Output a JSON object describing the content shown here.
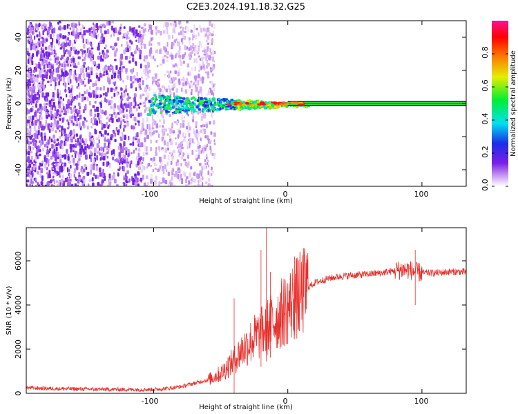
{
  "title": "C2E3.2024.191.18.32.G25",
  "chart_data": [
    {
      "type": "heatmap",
      "xlabel": "Height of straight line (km)",
      "ylabel": "Frequency (Hz)",
      "xlim": [
        -195,
        133
      ],
      "ylim": [
        -50,
        50
      ],
      "x_ticks": [
        -100,
        0,
        100
      ],
      "x_tick_labels": [
        "-100",
        "0",
        "100"
      ],
      "y_ticks": [
        -40,
        -20,
        0,
        20,
        40
      ],
      "y_tick_labels": [
        "-40",
        "-20",
        "0",
        "20",
        "40"
      ],
      "colorbar": {
        "label": "Normalized spectral amplitude",
        "range": [
          0,
          1
        ],
        "ticks": [
          0.0,
          0.2,
          0.4,
          0.6,
          0.8
        ],
        "tick_labels": [
          "0.0",
          "0.2",
          "0.4",
          "0.6",
          "0.8"
        ],
        "colormap": "rainbow (white → violet → blue → cyan → green → yellow → red → magenta)"
      },
      "features": [
        {
          "description": "scattered low-amplitude noise",
          "x_range": [
            -195,
            -65
          ],
          "y_range": [
            -50,
            50
          ],
          "amplitude": 0.05
        },
        {
          "description": "central carrier band widening",
          "x_range": [
            -105,
            15
          ],
          "y_range": [
            -6,
            6
          ],
          "amplitude": 0.4
        },
        {
          "description": "narrow steady tone",
          "x_range": [
            0,
            133
          ],
          "y_range": [
            -1,
            1
          ],
          "amplitude": 0.95
        }
      ]
    },
    {
      "type": "line",
      "xlabel": "Height of straight line (km)",
      "ylabel": "SNR (10 * v/v)",
      "xlim": [
        -195,
        133
      ],
      "ylim": [
        0,
        7500
      ],
      "x_ticks": [
        -100,
        0,
        100
      ],
      "x_tick_labels": [
        "-100",
        "0",
        "100"
      ],
      "y_ticks": [
        0,
        2000,
        4000,
        6000
      ],
      "y_tick_labels": [
        "0",
        "2000",
        "4000",
        "6000"
      ],
      "series": [
        {
          "color": "#e8302c",
          "x": [
            -195,
            -180,
            -160,
            -140,
            -120,
            -100,
            -90,
            -80,
            -70,
            -60,
            -50,
            -45,
            -40,
            -35,
            -30,
            -25,
            -20,
            -15,
            -10,
            -5,
            0,
            5,
            10,
            15,
            20,
            30,
            40,
            50,
            60,
            70,
            80,
            85,
            90,
            95,
            100,
            110,
            120,
            133
          ],
          "y": [
            250,
            220,
            200,
            180,
            170,
            170,
            220,
            300,
            450,
            600,
            900,
            1200,
            1500,
            1900,
            2200,
            2500,
            2700,
            3000,
            3300,
            3600,
            3900,
            4200,
            4500,
            4800,
            5000,
            5200,
            5300,
            5350,
            5400,
            5450,
            5550,
            5600,
            5600,
            5500,
            5450,
            5450,
            5500,
            5500
          ]
        }
      ],
      "spikes": [
        {
          "x": -40,
          "y": 4300
        },
        {
          "x": -20,
          "y": 6500
        },
        {
          "x": -16,
          "y": 7500
        },
        {
          "x": -13,
          "y": 5500
        },
        {
          "x": -5,
          "y": 4600
        },
        {
          "x": 5,
          "y": 6200
        },
        {
          "x": 8,
          "y": 6000
        },
        {
          "x": 95,
          "y": 6500
        }
      ]
    }
  ]
}
